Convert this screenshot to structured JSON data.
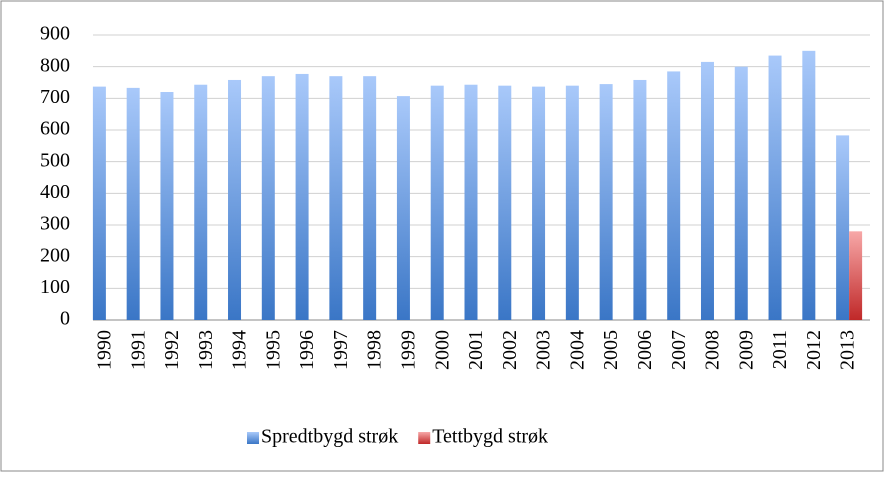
{
  "chart_data": {
    "type": "bar",
    "categories": [
      "1990",
      "1991",
      "1992",
      "1993",
      "1994",
      "1995",
      "1996",
      "1997",
      "1998",
      "1999",
      "2000",
      "2001",
      "2002",
      "2003",
      "2004",
      "2005",
      "2006",
      "2007",
      "2008",
      "2009",
      "2011",
      "2012",
      "2013"
    ],
    "series": [
      {
        "name": "Spredtbygd strøk",
        "color": "#4a86d8",
        "values": [
          737,
          733,
          720,
          743,
          758,
          770,
          777,
          770,
          770,
          707,
          740,
          743,
          740,
          737,
          740,
          745,
          758,
          785,
          815,
          800,
          835,
          850,
          583
        ]
      },
      {
        "name": "Tettbygd strøk",
        "color": "#d04848",
        "values": [
          null,
          null,
          null,
          null,
          null,
          null,
          null,
          null,
          null,
          null,
          null,
          null,
          null,
          null,
          null,
          null,
          null,
          null,
          null,
          null,
          null,
          null,
          280
        ]
      }
    ],
    "ylim": [
      0,
      900
    ],
    "yticks": [
      0,
      100,
      200,
      300,
      400,
      500,
      600,
      700,
      800,
      900
    ],
    "grid": true,
    "legend": "bottom"
  }
}
